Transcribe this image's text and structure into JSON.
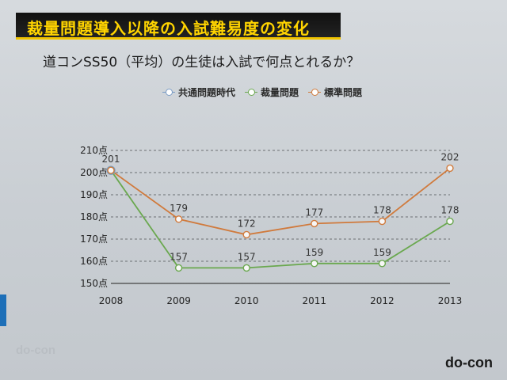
{
  "slide": {
    "title": "裁量問題導入以降の入試難易度の変化",
    "subtitle": "道コンSS50（平均）の生徒は入試で何点とれるか？",
    "logo": "do-con"
  },
  "colors": {
    "title_bg": "#111111",
    "title_text": "#ffd400",
    "accent": "#f1c400"
  },
  "chart_data": {
    "type": "line",
    "x": [
      2008,
      2009,
      2010,
      2011,
      2012,
      2013
    ],
    "ytick_labels": [
      "150点",
      "160点",
      "170点",
      "180点",
      "190点",
      "200点",
      "210点"
    ],
    "yticks": [
      150,
      160,
      170,
      180,
      190,
      200,
      210
    ],
    "ylim": [
      150,
      210
    ],
    "grid": true,
    "legend_placement": "top",
    "series": [
      {
        "name": "共通問題時代",
        "color": "#7a9cc6",
        "values": [
          201,
          null,
          null,
          null,
          null,
          null
        ],
        "labels": [
          "201",
          "",
          "",
          "",
          "",
          ""
        ]
      },
      {
        "name": "裁量問題",
        "color": "#6aa84f",
        "values": [
          201,
          157,
          157,
          159,
          159,
          178
        ],
        "labels": [
          "",
          "157",
          "157",
          "159",
          "159",
          "178"
        ]
      },
      {
        "name": "標準問題",
        "color": "#d07a3c",
        "values": [
          201,
          179,
          172,
          177,
          178,
          202
        ],
        "labels": [
          "",
          "179",
          "172",
          "177",
          "178",
          "202"
        ]
      }
    ]
  }
}
